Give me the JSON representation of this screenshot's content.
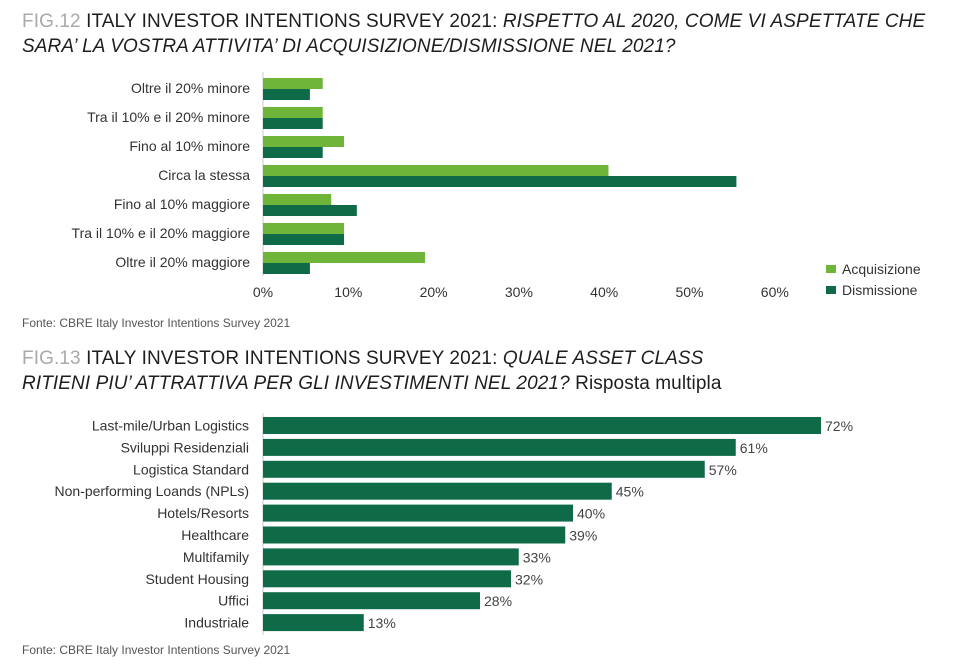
{
  "fig12": {
    "num": "FIG.12",
    "title": "ITALY INVESTOR INTENTIONS SURVEY 2021:",
    "subtitle_line1": "RISPETTO AL 2020, COME VI ASPETTATE CHE",
    "subtitle_line2": "SARA’ LA VOSTRA ATTIVITA’ DI ACQUISIZIONE/DISMISSIONE NEL 2021?",
    "source": "Fonte: CBRE Italy Investor Intentions Survey 2021"
  },
  "fig13": {
    "num": "FIG.13",
    "title": "ITALY INVESTOR INTENTIONS SURVEY 2021:",
    "subtitle_line1": "QUALE ASSET CLASS",
    "subtitle_line2": "RITIENI PIU’ ATTRATTIVA PER GLI INVESTIMENTI NEL 2021?",
    "subtitle_suffix": "Risposta multipla",
    "source": "Fonte: CBRE Italy Investor Intentions Survey 2021"
  },
  "colors": {
    "acquisizione": "#6fb53a",
    "dismissione": "#0f6b47"
  },
  "chart_data": [
    {
      "type": "bar",
      "orientation": "horizontal",
      "categories": [
        "Oltre il 20% minore",
        "Tra il 10% e il 20% minore",
        "Fino al 10% minore",
        "Circa la stessa",
        "Fino al 10% maggiore",
        "Tra il 10% e il 20% maggiore",
        "Oltre il 20% maggiore"
      ],
      "series": [
        {
          "name": "Acquisizione",
          "values": [
            7,
            7,
            9.5,
            40.5,
            8,
            9.5,
            19
          ]
        },
        {
          "name": "Dismissione",
          "values": [
            5.5,
            7,
            7,
            55.5,
            11,
            9.5,
            5.5
          ]
        }
      ],
      "xlim": [
        0,
        60
      ],
      "xticks": [
        "0%",
        "10%",
        "20%",
        "30%",
        "40%",
        "50%",
        "60%"
      ],
      "legend": "bottom-right"
    },
    {
      "type": "bar",
      "orientation": "horizontal",
      "categories": [
        "Last-mile/Urban Logistics",
        "Sviluppi Residenziali",
        "Logistica Standard",
        "Non-performing Loands (NPLs)",
        "Hotels/Resorts",
        "Healthcare",
        "Multifamily",
        "Student Housing",
        "Uffici",
        "Industriale"
      ],
      "values": [
        72,
        61,
        57,
        45,
        40,
        39,
        33,
        32,
        28,
        13
      ],
      "labels": [
        "72%",
        "61%",
        "57%",
        "45%",
        "40%",
        "39%",
        "33%",
        "32%",
        "28%",
        "13%"
      ],
      "xlim": [
        0,
        72
      ]
    }
  ]
}
